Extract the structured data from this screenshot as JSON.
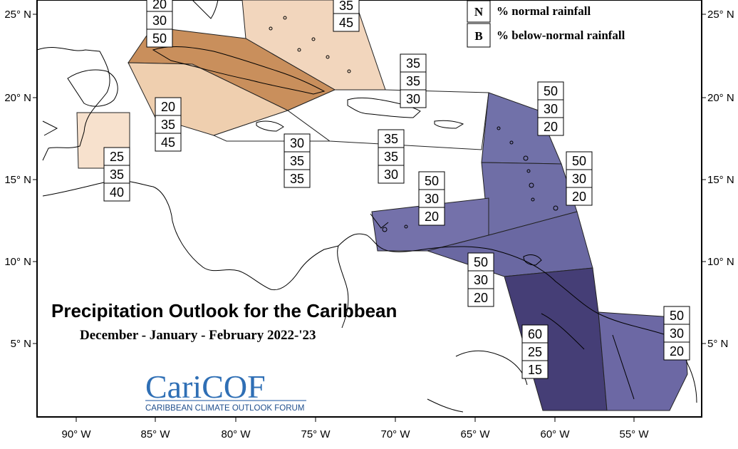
{
  "title": "Precipitation Outlook for the Caribbean",
  "subtitle": "December - January - February 2022-'23",
  "legend": [
    {
      "letter": "N",
      "text": "% normal rainfall"
    },
    {
      "letter": "B",
      "text": "% below-normal rainfall"
    }
  ],
  "logo": {
    "main_a": "Cari",
    "main_b": "COF",
    "sub": "CARIBBEAN CLIMATE OUTLOOK FORUM"
  },
  "lat_ticks": [
    "25° N",
    "20° N",
    "15° N",
    "10° N",
    "5° N"
  ],
  "lon_ticks": [
    "90° W",
    "85° W",
    "80° W",
    "75° W",
    "70° W",
    "65° W",
    "60° W",
    "55° W"
  ],
  "colors": {
    "above_light": "#d2935a",
    "above_mid": "#c98a55",
    "below_light": "#7070a8",
    "below_mid": "#5f5c98",
    "below_dark": "#413a72",
    "pale": "#f2d6bd",
    "white": "#ffffff"
  },
  "regions": [
    {
      "id": "bahamas",
      "values": [
        "35",
        "45"
      ],
      "top_cut": true
    },
    {
      "id": "cuba",
      "values": [
        "20",
        "30",
        "50"
      ],
      "top_cut": true
    },
    {
      "id": "western-caribbean-sea",
      "values": [
        "20",
        "35",
        "45"
      ]
    },
    {
      "id": "belize",
      "values": [
        "25",
        "35",
        "40"
      ]
    },
    {
      "id": "jamaica",
      "values": [
        "30",
        "35",
        "35"
      ]
    },
    {
      "id": "hispaniola-south",
      "values": [
        "35",
        "35",
        "30"
      ]
    },
    {
      "id": "turks-caicos",
      "values": [
        "35",
        "35",
        "30"
      ]
    },
    {
      "id": "leeward-islands",
      "values": [
        "50",
        "30",
        "20"
      ]
    },
    {
      "id": "windward-islands",
      "values": [
        "50",
        "30",
        "20"
      ]
    },
    {
      "id": "abc-islands",
      "values": [
        "50",
        "30",
        "20"
      ]
    },
    {
      "id": "trinidad-venezuela",
      "values": [
        "50",
        "30",
        "20"
      ]
    },
    {
      "id": "guyana",
      "values": [
        "60",
        "25",
        "15"
      ]
    },
    {
      "id": "suriname-french-guiana",
      "values": [
        "50",
        "30",
        "20"
      ]
    }
  ]
}
